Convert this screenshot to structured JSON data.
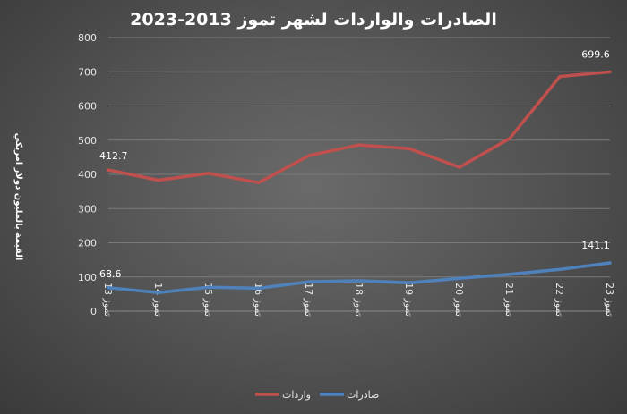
{
  "chart_data": {
    "type": "line",
    "title": "الصادرات والواردات لشهر تموز 2013-2023",
    "ylabel": "القيمة بالمليون دولار امريكي",
    "xlabel": "",
    "categories": [
      "تموز 13",
      "تموز 14",
      "تموز 15",
      "تموز 16",
      "تموز 17",
      "تموز 18",
      "تموز 19",
      "تموز 20",
      "تموز 21",
      "تموز 22",
      "تموز 23"
    ],
    "ylim": [
      0,
      800
    ],
    "yticks": [
      "0",
      "100",
      "200",
      "300",
      "400",
      "500",
      "600",
      "700",
      "800"
    ],
    "grid": true,
    "legend_position": "bottom",
    "series": [
      {
        "name": "واردات",
        "color": "#c0504d",
        "values": [
          412.7,
          383,
          403,
          376,
          455,
          486,
          475,
          421,
          505,
          686,
          699.6
        ],
        "labels": [
          "412.7",
          "",
          "",
          "",
          "",
          "",
          "",
          "",
          "",
          "",
          "699.6"
        ]
      },
      {
        "name": "صادرات",
        "color": "#4f81bd",
        "values": [
          68.6,
          54,
          70,
          67,
          86,
          89,
          83,
          96,
          108,
          122,
          141.1
        ],
        "labels": [
          "68.6",
          "",
          "",
          "",
          "",
          "",
          "",
          "",
          "",
          "",
          "141.1"
        ]
      }
    ]
  }
}
